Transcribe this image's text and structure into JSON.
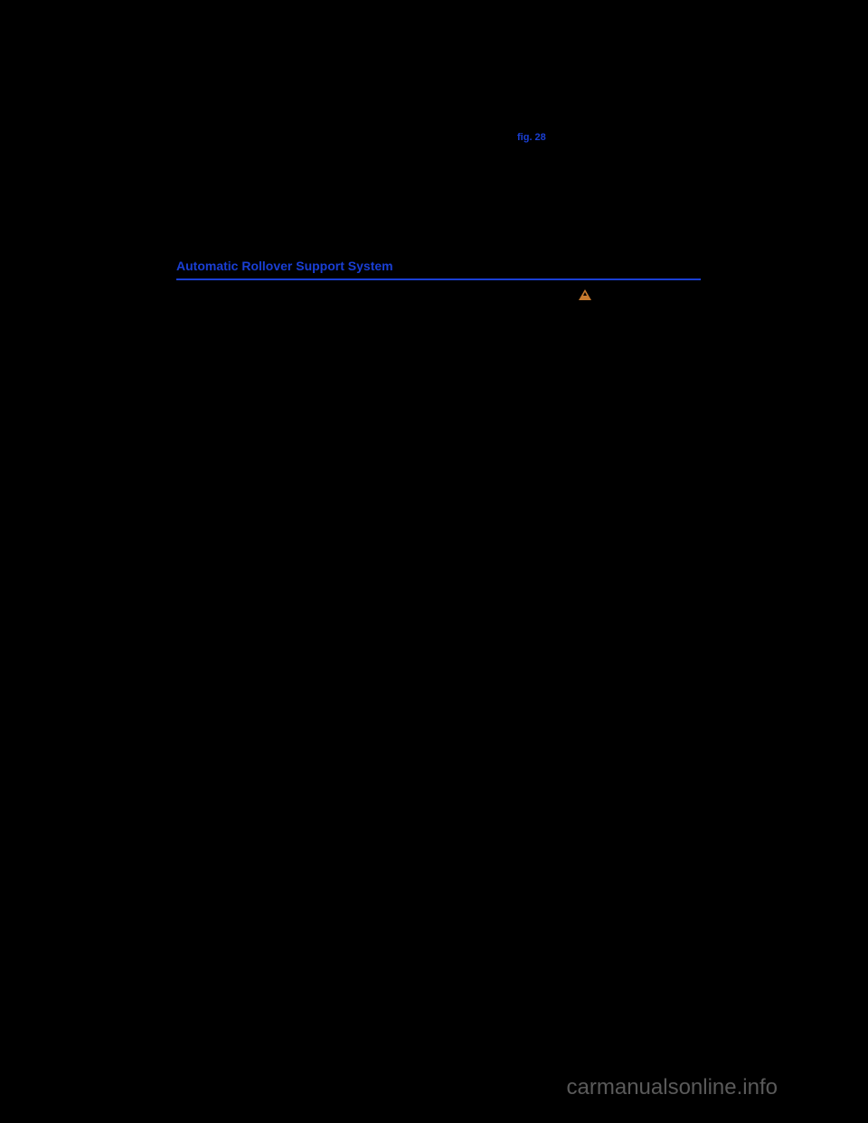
{
  "page": {
    "fig_reference": "fig. 28",
    "section_heading": "Automatic Rollover Support System",
    "watermark": "carmanualsonline.info"
  },
  "colors": {
    "background": "#000000",
    "link_blue": "#1a3fd4",
    "warning_orange": "#c77a2e",
    "watermark_gray": "#5a5a5a"
  }
}
